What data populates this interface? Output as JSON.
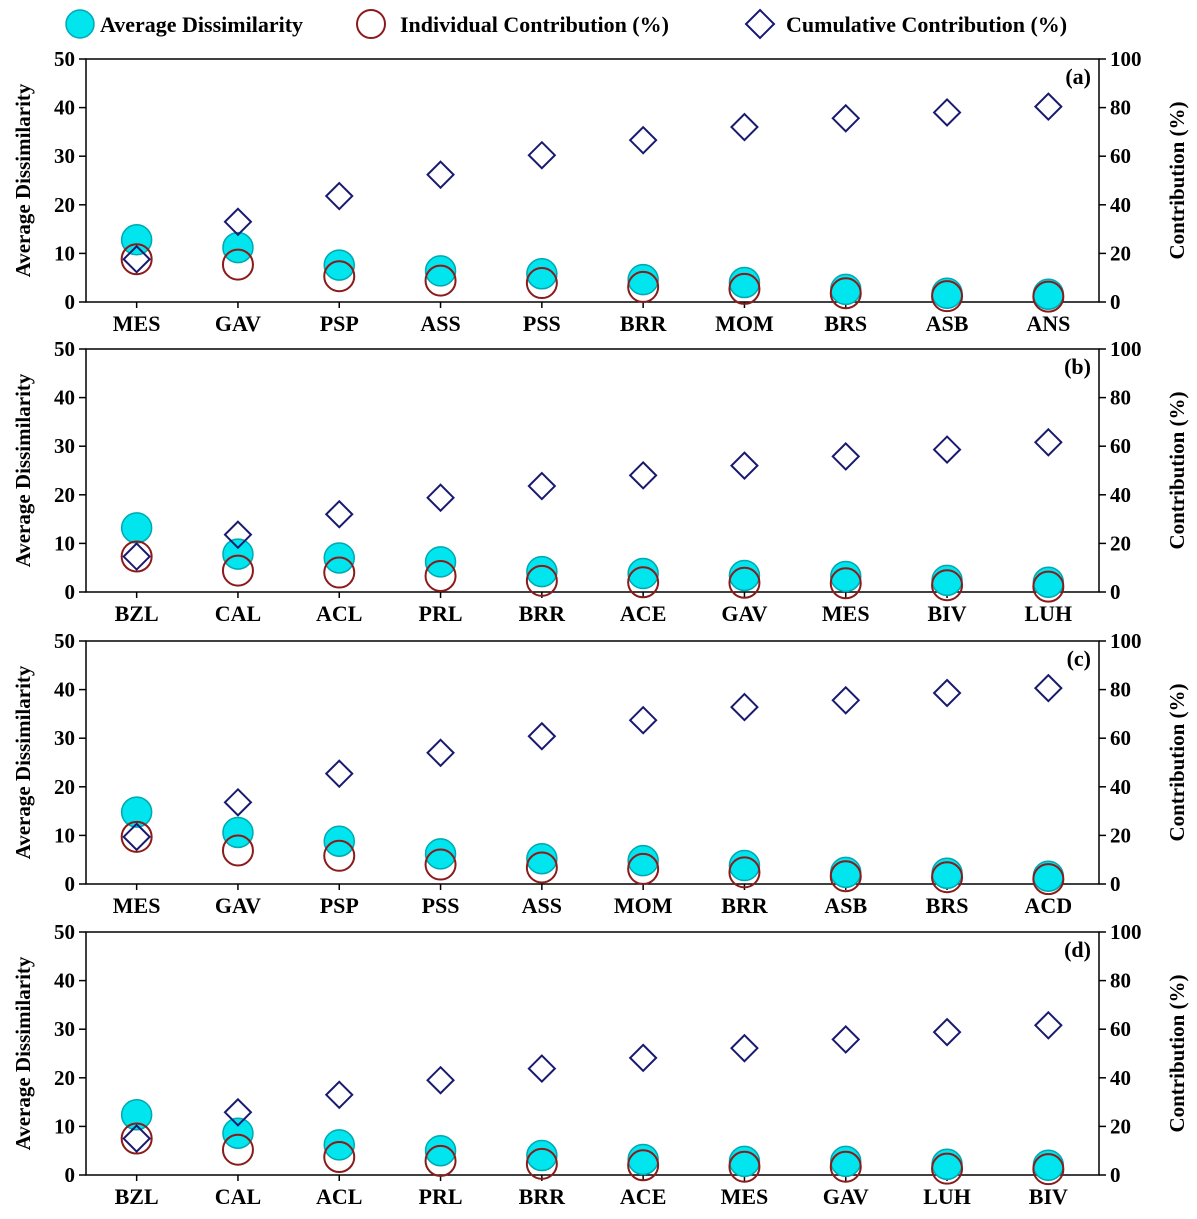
{
  "legend": {
    "items": [
      {
        "label": "Average Dissimilarity",
        "marker": "filled-circle",
        "color": "#00e5ee"
      },
      {
        "label": "Individual Contribution (%)",
        "marker": "open-circle",
        "color": "#8b1a1a"
      },
      {
        "label": "Cumulative Contribution (%)",
        "marker": "open-diamond",
        "color": "#191970"
      }
    ]
  },
  "colors": {
    "avg_fill": "#00e5ee",
    "avg_stroke": "#00a8b0",
    "individual_stroke": "#8b1a1a",
    "cumulative_stroke": "#191970",
    "axis": "#000000"
  },
  "chart_data": [
    {
      "type": "scatter",
      "panel_label": "(a)",
      "categories": [
        "MES",
        "GAV",
        "PSP",
        "ASS",
        "PSS",
        "BRR",
        "MOM",
        "BRS",
        "ASB",
        "ANS"
      ],
      "ylabel": "Average Dissimilarity",
      "y2label": "Contribution (%)",
      "ylim": [
        0,
        50
      ],
      "y2lim": [
        0,
        100
      ],
      "yticks": [
        0,
        10,
        20,
        30,
        40,
        50
      ],
      "y2ticks": [
        0,
        20,
        40,
        60,
        80,
        100
      ],
      "series": [
        {
          "name": "Average Dissimilarity",
          "axis": "left",
          "values": [
            12.8,
            11.2,
            7.6,
            6.4,
            5.8,
            4.6,
            4.0,
            2.6,
            1.8,
            1.6
          ]
        },
        {
          "name": "Individual Contribution (%)",
          "axis": "right",
          "values": [
            17.6,
            15.4,
            10.6,
            8.8,
            7.8,
            6.2,
            5.4,
            3.6,
            2.4,
            2.2
          ]
        },
        {
          "name": "Cumulative Contribution (%)",
          "axis": "right",
          "values": [
            17.6,
            33.0,
            43.6,
            52.4,
            60.4,
            66.6,
            72.0,
            75.6,
            78.0,
            80.4
          ]
        }
      ]
    },
    {
      "type": "scatter",
      "panel_label": "(b)",
      "categories": [
        "BZL",
        "CAL",
        "ACL",
        "PRL",
        "BRR",
        "ACE",
        "GAV",
        "MES",
        "BIV",
        "LUH"
      ],
      "ylabel": "Average Dissimilarity",
      "y2label": "Contribution (%)",
      "ylim": [
        0,
        50
      ],
      "y2lim": [
        0,
        100
      ],
      "yticks": [
        0,
        10,
        20,
        30,
        40,
        50
      ],
      "y2ticks": [
        0,
        20,
        40,
        60,
        80,
        100
      ],
      "series": [
        {
          "name": "Average Dissimilarity",
          "axis": "left",
          "values": [
            13.2,
            7.8,
            7.0,
            6.2,
            4.2,
            3.8,
            3.4,
            3.2,
            2.4,
            2.0
          ]
        },
        {
          "name": "Individual Contribution (%)",
          "axis": "right",
          "values": [
            14.6,
            8.8,
            8.0,
            6.6,
            4.6,
            4.0,
            3.8,
            3.6,
            2.8,
            2.2
          ]
        },
        {
          "name": "Cumulative Contribution (%)",
          "axis": "right",
          "values": [
            14.6,
            23.6,
            32.0,
            38.8,
            43.6,
            48.0,
            52.0,
            55.8,
            58.6,
            61.6
          ]
        }
      ]
    },
    {
      "type": "scatter",
      "panel_label": "(c)",
      "categories": [
        "MES",
        "GAV",
        "PSP",
        "PSS",
        "ASS",
        "MOM",
        "BRR",
        "ASB",
        "BRS",
        "ACD"
      ],
      "ylabel": "Average Dissimilarity",
      "y2label": "Contribution (%)",
      "ylim": [
        0,
        50
      ],
      "y2lim": [
        0,
        100
      ],
      "yticks": [
        0,
        10,
        20,
        30,
        40,
        50
      ],
      "y2ticks": [
        0,
        20,
        40,
        60,
        80,
        100
      ],
      "series": [
        {
          "name": "Average Dissimilarity",
          "axis": "left",
          "values": [
            14.8,
            10.6,
            8.8,
            6.2,
            5.2,
            4.8,
            3.8,
            2.4,
            2.2,
            1.6
          ]
        },
        {
          "name": "Individual Contribution (%)",
          "axis": "right",
          "values": [
            19.4,
            13.8,
            11.6,
            8.0,
            6.8,
            6.2,
            4.8,
            3.2,
            2.8,
            2.0
          ]
        },
        {
          "name": "Cumulative Contribution (%)",
          "axis": "right",
          "values": [
            19.4,
            33.6,
            45.4,
            54.0,
            60.8,
            67.4,
            72.8,
            75.6,
            78.6,
            80.6
          ]
        }
      ]
    },
    {
      "type": "scatter",
      "panel_label": "(d)",
      "categories": [
        "BZL",
        "CAL",
        "ACL",
        "PRL",
        "BRR",
        "ACE",
        "MES",
        "GAV",
        "LUH",
        "BIV"
      ],
      "ylabel": "Average Dissimilarity",
      "y2label": "Contribution (%)",
      "ylim": [
        0,
        50
      ],
      "y2lim": [
        0,
        100
      ],
      "yticks": [
        0,
        10,
        20,
        30,
        40,
        50
      ],
      "y2ticks": [
        0,
        20,
        40,
        60,
        80,
        100
      ],
      "series": [
        {
          "name": "Average Dissimilarity",
          "axis": "left",
          "values": [
            12.4,
            8.6,
            6.2,
            5.0,
            4.0,
            3.2,
            2.8,
            2.8,
            2.2,
            2.0
          ]
        },
        {
          "name": "Individual Contribution (%)",
          "axis": "right",
          "values": [
            15.0,
            10.4,
            7.4,
            5.8,
            4.6,
            4.0,
            3.4,
            3.4,
            2.6,
            2.4
          ]
        },
        {
          "name": "Cumulative Contribution (%)",
          "axis": "right",
          "values": [
            15.0,
            25.8,
            33.0,
            39.0,
            43.8,
            48.2,
            52.2,
            55.8,
            58.8,
            61.6
          ]
        }
      ]
    }
  ]
}
